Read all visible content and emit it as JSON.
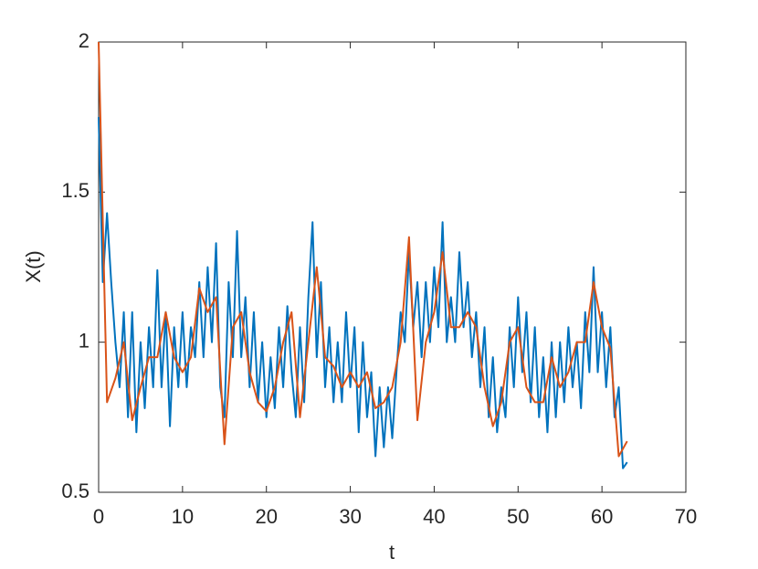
{
  "chart_data": {
    "type": "line",
    "xlabel": "t",
    "ylabel": "X(t)",
    "xlim": [
      0,
      70
    ],
    "ylim": [
      0.5,
      2
    ],
    "xticks": [
      0,
      10,
      20,
      30,
      40,
      50,
      60,
      70
    ],
    "yticks": [
      0.5,
      1,
      1.5,
      2
    ],
    "grid": false,
    "series": [
      {
        "color": "#0072BD",
        "x": [
          0,
          0.5,
          1,
          1.5,
          2,
          2.5,
          3,
          3.5,
          4,
          4.5,
          5,
          5.5,
          6,
          6.5,
          7,
          7.5,
          8,
          8.5,
          9,
          9.5,
          10,
          10.5,
          11,
          11.5,
          12,
          12.5,
          13,
          13.5,
          14,
          14.5,
          15,
          15.5,
          16,
          16.5,
          17,
          17.5,
          18,
          18.5,
          19,
          19.5,
          20,
          20.5,
          21,
          21.5,
          22,
          22.5,
          23,
          23.5,
          24,
          24.5,
          25,
          25.5,
          26,
          26.5,
          27,
          27.5,
          28,
          28.5,
          29,
          29.5,
          30,
          30.5,
          31,
          31.5,
          32,
          32.5,
          33,
          33.5,
          34,
          34.5,
          35,
          35.5,
          36,
          36.5,
          37,
          37.5,
          38,
          38.5,
          39,
          39.5,
          40,
          40.5,
          41,
          41.5,
          42,
          42.5,
          43,
          43.5,
          44,
          44.5,
          45,
          45.5,
          46,
          46.5,
          47,
          47.5,
          48,
          48.5,
          49,
          49.5,
          50,
          50.5,
          51,
          51.5,
          52,
          52.5,
          53,
          53.5,
          54,
          54.5,
          55,
          55.5,
          56,
          56.5,
          57,
          57.5,
          58,
          58.5,
          59,
          59.5,
          60,
          60.5,
          61,
          61.5,
          62,
          62.5,
          63
        ],
        "values": [
          1.75,
          1.2,
          1.43,
          1.2,
          1.0,
          0.85,
          1.1,
          0.75,
          1.1,
          0.7,
          1.0,
          0.78,
          1.05,
          0.85,
          1.24,
          0.85,
          1.1,
          0.72,
          1.05,
          0.85,
          1.1,
          0.85,
          1.05,
          0.95,
          1.2,
          0.95,
          1.25,
          1.0,
          1.33,
          0.85,
          0.75,
          1.2,
          0.95,
          1.37,
          0.95,
          1.15,
          0.85,
          1.1,
          0.8,
          1.0,
          0.75,
          0.95,
          0.78,
          1.05,
          0.85,
          1.12,
          0.9,
          0.75,
          1.05,
          0.8,
          1.15,
          1.4,
          0.95,
          1.2,
          0.85,
          1.05,
          0.8,
          1.0,
          0.8,
          1.1,
          0.85,
          1.05,
          0.7,
          1.0,
          0.75,
          0.9,
          0.62,
          0.85,
          0.65,
          0.85,
          0.68,
          0.9,
          1.1,
          1.0,
          1.3,
          1.05,
          1.2,
          0.95,
          1.2,
          1.0,
          1.25,
          1.05,
          1.4,
          1.0,
          1.15,
          1.0,
          1.3,
          1.05,
          1.2,
          0.95,
          1.1,
          0.85,
          1.05,
          0.75,
          0.95,
          0.7,
          0.85,
          0.75,
          1.05,
          0.85,
          1.15,
          0.9,
          1.1,
          0.8,
          1.05,
          0.75,
          0.95,
          0.7,
          1.0,
          0.75,
          1.0,
          0.8,
          1.05,
          0.85,
          1.0,
          0.78,
          1.1,
          0.9,
          1.25,
          0.9,
          1.1,
          0.85,
          1.05,
          0.75,
          0.85,
          0.58,
          0.6
        ]
      },
      {
        "color": "#D95319",
        "x": [
          0,
          1,
          2,
          3,
          4,
          5,
          6,
          7,
          8,
          9,
          10,
          11,
          12,
          13,
          14,
          15,
          16,
          17,
          18,
          19,
          20,
          21,
          22,
          23,
          24,
          25,
          26,
          27,
          28,
          29,
          30,
          31,
          32,
          33,
          34,
          35,
          36,
          37,
          38,
          39,
          40,
          41,
          42,
          43,
          44,
          45,
          46,
          47,
          48,
          49,
          50,
          51,
          52,
          53,
          54,
          55,
          56,
          57,
          58,
          59,
          60,
          61,
          62,
          63
        ],
        "values": [
          2,
          0.8,
          0.88,
          1.0,
          0.74,
          0.85,
          0.95,
          0.95,
          1.1,
          0.95,
          0.9,
          0.95,
          1.18,
          1.1,
          1.15,
          0.66,
          1.05,
          1.1,
          0.9,
          0.8,
          0.77,
          0.85,
          1.0,
          1.1,
          0.75,
          1.0,
          1.25,
          0.95,
          0.92,
          0.85,
          0.9,
          0.85,
          0.9,
          0.78,
          0.8,
          0.85,
          1.0,
          1.35,
          0.74,
          1.0,
          1.1,
          1.3,
          1.05,
          1.05,
          1.1,
          1.05,
          0.85,
          0.72,
          0.8,
          1.0,
          1.05,
          0.85,
          0.8,
          0.8,
          0.95,
          0.85,
          0.9,
          1.0,
          1.0,
          1.2,
          1.05,
          0.98,
          0.62,
          0.67
        ]
      }
    ]
  }
}
